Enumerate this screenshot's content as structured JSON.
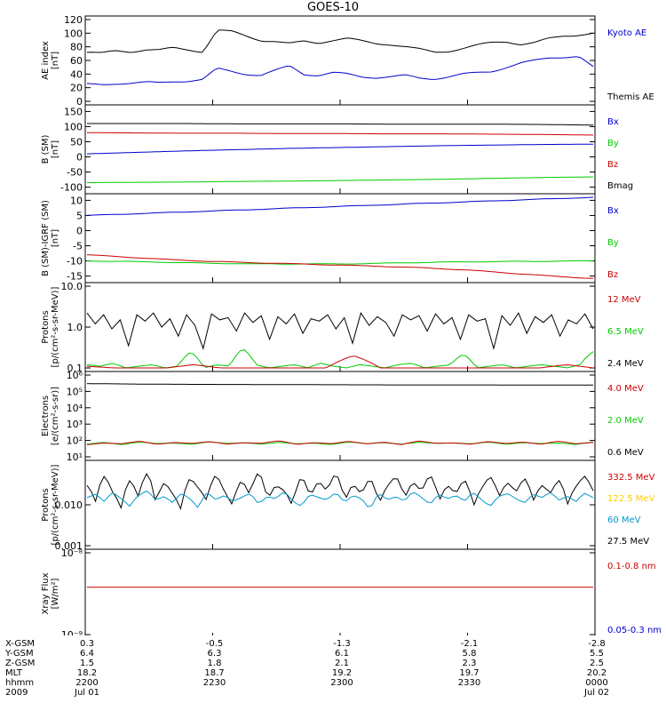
{
  "title": "GOES-10",
  "panels": [
    {
      "id": "ae",
      "ylabel_lines": [
        "AE index",
        "[nT]"
      ],
      "scale": "linear",
      "ylim": [
        0,
        120
      ],
      "ticks": [
        "0",
        "20",
        "40",
        "60",
        "80",
        "100",
        "120"
      ],
      "legend": [
        {
          "text": "Kyoto AE",
          "color": "#0000cc"
        },
        {
          "text": "Themis AE",
          "color": "#000000"
        }
      ],
      "series": [
        {
          "color": "#000000",
          "noise": 2.0,
          "values": [
            72,
            70,
            74,
            73,
            76,
            75,
            78,
            76,
            73,
            104,
            102,
            96,
            90,
            88,
            84,
            88,
            86,
            90,
            92,
            88,
            85,
            84,
            80,
            76,
            72,
            74,
            78,
            82,
            86,
            88,
            84,
            86,
            92,
            96,
            98,
            100
          ]
        },
        {
          "color": "#0000cc",
          "noise": 1.5,
          "values": [
            25,
            24,
            26,
            27,
            28,
            27,
            29,
            30,
            32,
            48,
            44,
            40,
            38,
            45,
            52,
            40,
            38,
            42,
            40,
            36,
            35,
            36,
            38,
            34,
            33,
            36,
            40,
            42,
            44,
            50,
            56,
            60,
            64,
            65,
            66,
            50
          ]
        }
      ]
    },
    {
      "id": "bsm",
      "ylabel_lines": [
        "B (SM)",
        "[nT]"
      ],
      "scale": "linear",
      "ylim": [
        -110,
        160
      ],
      "ticks": [
        "-100",
        "-50",
        "0",
        "50",
        "100",
        "150"
      ],
      "legend": [
        {
          "text": "Bx",
          "color": "#0000cc"
        },
        {
          "text": "By",
          "color": "#00cc00"
        },
        {
          "text": "Bz",
          "color": "#cc0000"
        },
        {
          "text": "Bmag",
          "color": "#000000"
        }
      ],
      "series": [
        {
          "color": "#000000",
          "noise": 0,
          "values": [
            110,
            110,
            110,
            109,
            109,
            109,
            108,
            108,
            108,
            107,
            105
          ]
        },
        {
          "color": "#cc0000",
          "noise": 0,
          "values": [
            80,
            79,
            78,
            78,
            77,
            77,
            76,
            76,
            75,
            74,
            72
          ]
        },
        {
          "color": "#0000cc",
          "noise": 0,
          "values": [
            10,
            15,
            20,
            24,
            28,
            31,
            34,
            37,
            39,
            41,
            42
          ]
        },
        {
          "color": "#00cc00",
          "noise": 0,
          "values": [
            -85,
            -84,
            -83,
            -81,
            -80,
            -78,
            -76,
            -74,
            -71,
            -68,
            -66
          ]
        }
      ]
    },
    {
      "id": "bsmigrf",
      "ylabel_lines": [
        "B (SM)-IGRF (SM)",
        "[nT]"
      ],
      "scale": "linear",
      "ylim": [
        -16,
        11
      ],
      "ticks": [
        "-15",
        "-10",
        "-5",
        "0",
        "5",
        "10"
      ],
      "legend": [
        {
          "text": "Bx",
          "color": "#0000cc"
        },
        {
          "text": "By",
          "color": "#00cc00"
        },
        {
          "text": "Bz",
          "color": "#cc0000"
        }
      ],
      "series": [
        {
          "color": "#0000cc",
          "noise": 0.1,
          "values": [
            5,
            5.5,
            6,
            6.5,
            7,
            7.5,
            8,
            8.5,
            9.0,
            9.5,
            10,
            10.5,
            11
          ]
        },
        {
          "color": "#00cc00",
          "noise": 0.1,
          "values": [
            -10,
            -10.2,
            -10.5,
            -10.8,
            -11,
            -11,
            -11,
            -10.8,
            -10.5,
            -10.3,
            -10.2,
            -10.1,
            -10
          ]
        },
        {
          "color": "#cc0000",
          "noise": 0.1,
          "values": [
            -8,
            -8.8,
            -9.6,
            -10.2,
            -10.6,
            -11,
            -11.4,
            -11.8,
            -12.3,
            -13,
            -14,
            -15,
            -15.8
          ]
        }
      ]
    },
    {
      "id": "protons1",
      "ylabel_lines": [
        "Protons",
        "[p/(cm²-s-sr-MeV)]"
      ],
      "scale": "log",
      "ylim": [
        0.1,
        10
      ],
      "ticks": [
        "0.1",
        "1.0",
        "10.0"
      ],
      "legend": [
        {
          "text": "12 MeV",
          "color": "#cc0000"
        },
        {
          "text": "6.5 MeV",
          "color": "#00cc00"
        },
        {
          "text": "2.4 MeV",
          "color": "#000000"
        }
      ],
      "series": [
        {
          "color": "#000000",
          "noise": 0,
          "values": [
            2.2,
            1.2,
            2.0,
            0.9,
            1.5,
            0.35,
            2.0,
            1.4,
            2.2,
            1.0,
            1.6,
            0.6,
            2.0,
            1.1,
            0.3,
            2.1,
            1.5,
            1.7,
            0.8,
            2.2,
            1.3,
            1.9,
            0.5,
            1.8,
            1.2,
            2.1,
            0.7,
            1.6,
            1.4,
            2.0,
            0.9,
            1.7,
            0.4,
            2.2,
            1.1,
            1.8,
            1.3,
            0.6,
            2.0,
            1.5,
            1.9,
            0.8,
            2.1,
            1.2,
            1.7,
            0.5,
            2.0,
            1.4,
            1.6,
            0.3,
            1.9,
            1.1,
            2.2,
            0.7,
            1.8,
            1.3,
            2.0,
            0.6,
            1.5,
            1.2,
            2.1,
            0.9
          ]
        },
        {
          "color": "#00cc00",
          "noise": 0,
          "values": [
            0.12,
            0.11,
            0.13,
            0.1,
            0.11,
            0.12,
            0.1,
            0.11,
            0.25,
            0.1,
            0.12,
            0.11,
            0.3,
            0.12,
            0.1,
            0.11,
            0.12,
            0.1,
            0.13,
            0.11,
            0.1,
            0.12,
            0.11,
            0.1,
            0.12,
            0.13,
            0.1,
            0.11,
            0.12,
            0.22,
            0.1,
            0.11,
            0.12,
            0.1,
            0.11,
            0.12,
            0.11,
            0.1,
            0.12,
            0.25
          ]
        },
        {
          "color": "#cc0000",
          "noise": 0,
          "values": [
            0.11,
            0.1,
            0.1,
            0.1,
            0.12,
            0.1,
            0.1,
            0.1,
            0.1,
            0.1,
            0.2,
            0.1,
            0.1,
            0.1,
            0.1,
            0.1,
            0.1,
            0.1,
            0.12,
            0.1
          ]
        }
      ]
    },
    {
      "id": "electrons",
      "ylabel_lines": [
        "Electrons",
        "[e/(cm²-s-sr)]"
      ],
      "scale": "log",
      "ylim": [
        10,
        1000000
      ],
      "ticks": [
        "10¹",
        "10²",
        "10³",
        "10⁴",
        "10⁵",
        "10⁶"
      ],
      "legend": [
        {
          "text": "4.0 MeV",
          "color": "#cc0000"
        },
        {
          "text": "2.0 MeV",
          "color": "#00cc00"
        },
        {
          "text": "0.6 MeV",
          "color": "#000000"
        }
      ],
      "series": [
        {
          "color": "#000000",
          "noise": 0,
          "values": [
            300000,
            280000,
            270000,
            265000,
            260000,
            255000,
            250000,
            250000,
            248000,
            245000,
            242000
          ]
        },
        {
          "color": "#00cc00",
          "noise": 0,
          "values": [
            60,
            75,
            55,
            80,
            65,
            70,
            58,
            82,
            66,
            72,
            60,
            77,
            63,
            69,
            56,
            81,
            64,
            73,
            59,
            78,
            67,
            71,
            62,
            80,
            58,
            74,
            65,
            70,
            57,
            79
          ]
        },
        {
          "color": "#cc0000",
          "noise": 0,
          "values": [
            55,
            70,
            62,
            90,
            58,
            75,
            66,
            85,
            60,
            72,
            68,
            95,
            57,
            74,
            63,
            88,
            61,
            78,
            55,
            92,
            67,
            70,
            59,
            86,
            64,
            80,
            58,
            90,
            62,
            76
          ]
        }
      ]
    },
    {
      "id": "protons2",
      "ylabel_lines": [
        "Protons",
        "[p/(cm²-s-sr-MeV)]"
      ],
      "scale": "log",
      "ylim": [
        0.001,
        0.1
      ],
      "ticks": [
        "0.001",
        "0.010"
      ],
      "legend": [
        {
          "text": "332.5 MeV",
          "color": "#cc0000"
        },
        {
          "text": "122.5 MeV",
          "color": "#ffcc00"
        },
        {
          "text": "60 MeV",
          "color": "#0099cc"
        },
        {
          "text": "27.5 MeV",
          "color": "#000000"
        }
      ],
      "series": [
        {
          "color": "#000000",
          "noise": 0,
          "values": [
            0.03,
            0.012,
            0.05,
            0.02,
            0.008,
            0.04,
            0.015,
            0.06,
            0.01,
            0.035,
            0.018,
            0.007,
            0.045,
            0.025,
            0.012,
            0.055,
            0.02,
            0.009,
            0.04,
            0.016,
            0.065,
            0.011,
            0.03,
            0.022,
            0.008,
            0.05,
            0.014,
            0.038,
            0.02,
            0.06,
            0.01,
            0.032,
            0.017,
            0.045,
            0.009,
            0.028,
            0.05,
            0.013,
            0.036,
            0.02,
            0.055,
            0.011,
            0.03,
            0.018,
            0.042,
            0.008,
            0.025,
            0.05,
            0.015,
            0.035,
            0.02,
            0.045,
            0.012,
            0.03,
            0.019,
            0.04,
            0.01,
            0.028,
            0.05,
            0.022
          ]
        },
        {
          "color": "#0099cc",
          "noise": 0,
          "values": [
            0.015,
            0.018,
            0.012,
            0.02,
            0.014,
            0.009,
            0.017,
            0.022,
            0.013,
            0.016,
            0.011,
            0.019,
            0.014,
            0.008,
            0.02,
            0.013,
            0.017,
            0.012,
            0.015,
            0.019,
            0.01,
            0.016,
            0.014,
            0.021,
            0.012,
            0.009,
            0.018,
            0.015,
            0.013,
            0.02,
            0.011,
            0.017,
            0.014,
            0.007,
            0.019,
            0.013,
            0.016,
            0.012,
            0.021,
            0.015,
            0.01,
            0.018,
            0.014,
            0.017,
            0.012,
            0.02,
            0.013,
            0.009,
            0.016,
            0.019,
            0.014,
            0.011,
            0.018,
            0.015,
            0.02,
            0.013,
            0.016,
            0.012,
            0.019,
            0.015
          ]
        }
      ]
    },
    {
      "id": "xray",
      "ylabel_lines": [
        "Xray Flux",
        "[W/m²]"
      ],
      "scale": "log",
      "ylim": [
        1e-09,
        1e-08
      ],
      "ticks": [
        "10⁻⁹",
        "10⁻⁸"
      ],
      "legend": [
        {
          "text": "0.1-0.8 nm",
          "color": "#cc0000"
        },
        {
          "text": "0.05-0.3 nm",
          "color": "#0000cc"
        }
      ],
      "series": [
        {
          "color": "#cc0000",
          "noise": 0,
          "values": [
            3.8e-09,
            3.8e-09,
            3.8e-09,
            3.8e-09,
            3.8e-09,
            3.8e-09,
            3.8e-09,
            3.8e-09,
            3.8e-09,
            3.8e-09
          ]
        }
      ]
    }
  ],
  "footer": {
    "labels": [
      "X-GSM",
      "Y-GSM",
      "Z-GSM",
      "MLT",
      "hhmm",
      "2009"
    ],
    "columns": [
      [
        "0.3",
        "6.4",
        "1.5",
        "18.2",
        "2200",
        "Jul 01"
      ],
      [
        "-0.5",
        "6.3",
        "1.8",
        "18.7",
        "2230",
        ""
      ],
      [
        "-1.3",
        "6.1",
        "2.1",
        "19.2",
        "2300",
        ""
      ],
      [
        "-2.1",
        "5.8",
        "2.3",
        "19.7",
        "2330",
        ""
      ],
      [
        "-2.8",
        "5.5",
        "2.5",
        "20.2",
        "0000",
        "Jul 02"
      ]
    ]
  }
}
